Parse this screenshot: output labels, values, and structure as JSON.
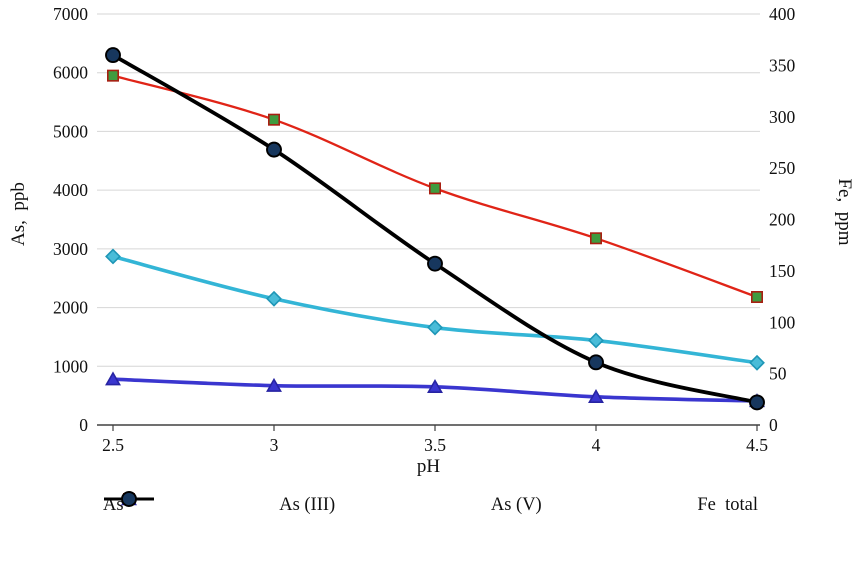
{
  "chart_data": {
    "type": "line",
    "title": "",
    "xlabel": "pH",
    "ylabel_left": "As,  ppb",
    "ylabel_right": "Fe,  ppm",
    "x_domain": [
      2.5,
      4.5
    ],
    "x_ticks": [
      2.5,
      3,
      3.5,
      4,
      4.5
    ],
    "x_tick_labels": [
      "2.5",
      "3",
      "3.5",
      "4",
      "4.5"
    ],
    "y_left_range": [
      0,
      7000
    ],
    "y_left_ticks": [
      0,
      1000,
      2000,
      3000,
      4000,
      5000,
      6000,
      7000
    ],
    "y_right_range": [
      0,
      400
    ],
    "y_right_ticks": [
      0,
      50,
      100,
      150,
      200,
      250,
      300,
      350,
      400
    ],
    "grid": true,
    "legend_position": "bottom",
    "x": [
      2.5,
      3,
      3.5,
      4,
      4.5
    ],
    "series": [
      {
        "name": "As",
        "axis": "left",
        "values": [
          5950,
          5200,
          4030,
          3180,
          2180
        ],
        "line_color": "#e02417",
        "line_width": 2.3,
        "marker": "square",
        "marker_fill": "#3f9b3f",
        "marker_stroke": "#a81f12"
      },
      {
        "name": "As (III)",
        "axis": "left",
        "values": [
          2870,
          2150,
          1660,
          1440,
          1060
        ],
        "line_color": "#33b5d6",
        "line_width": 3.6,
        "marker": "diamond",
        "marker_fill": "#49bcd8",
        "marker_stroke": "#1e96b6"
      },
      {
        "name": "As (V)",
        "axis": "left",
        "values": [
          780,
          670,
          650,
          480,
          410
        ],
        "line_color": "#3a36cf",
        "line_width": 3.6,
        "marker": "triangle",
        "marker_fill": "#3a36cf",
        "marker_stroke": "#2724a3"
      },
      {
        "name": "Fe  total",
        "axis": "right",
        "values": [
          360,
          268,
          157,
          61,
          22
        ],
        "line_color": "#000000",
        "line_width": 3.8,
        "marker": "circle",
        "marker_fill": "#17375e",
        "marker_stroke": "#000000"
      }
    ],
    "axis_color": "#404040",
    "grid_color": "#d6d6d6",
    "tick_font_size": 17.5
  }
}
